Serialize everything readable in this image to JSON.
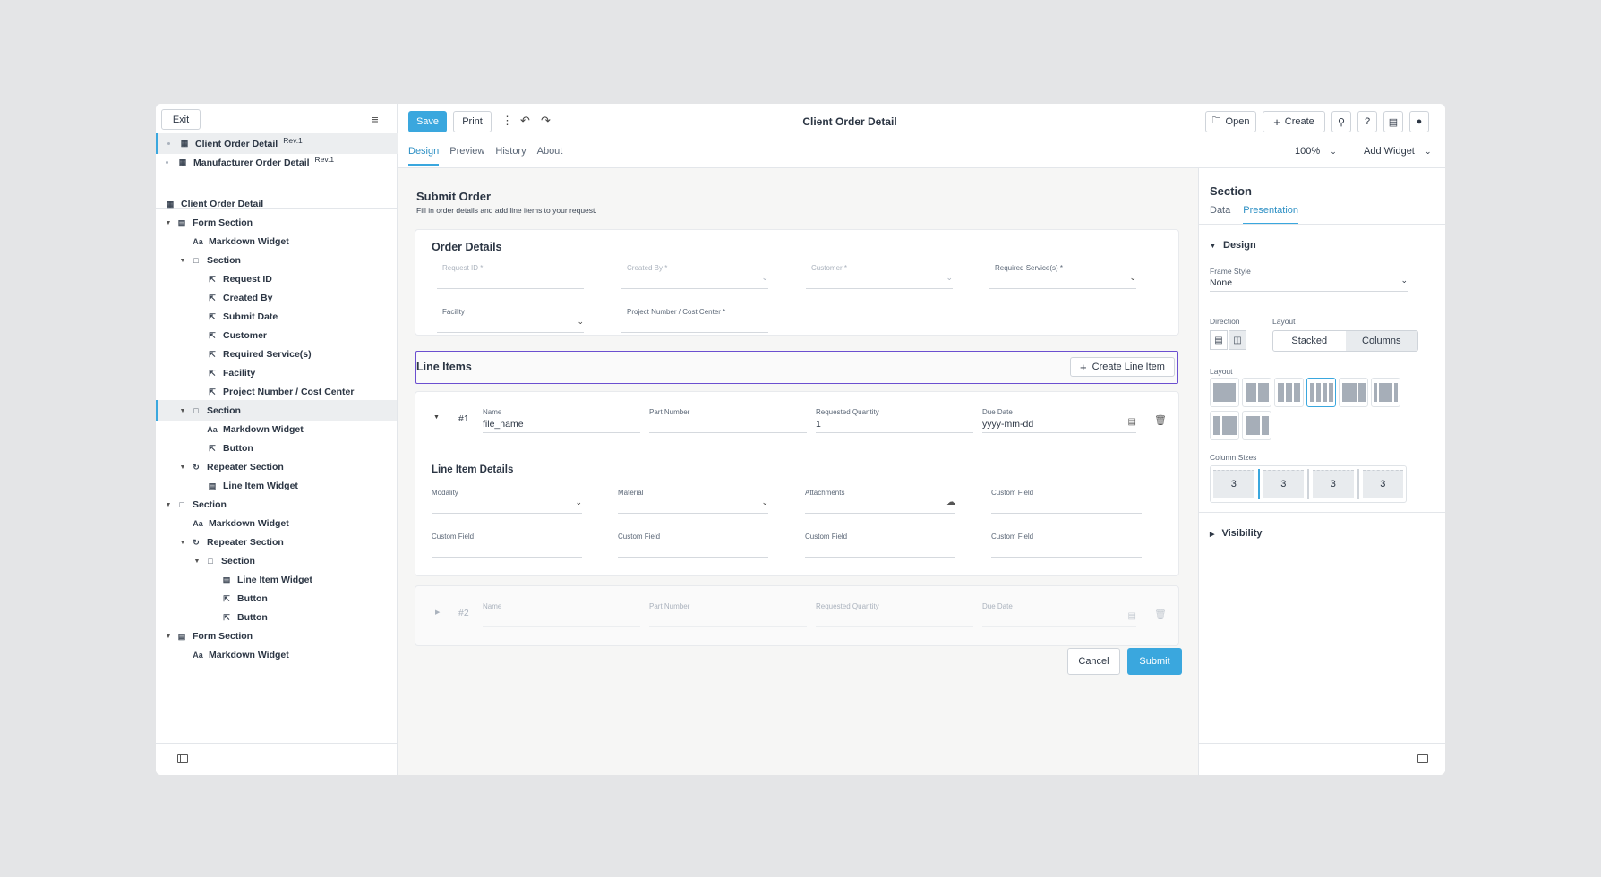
{
  "sidebar": {
    "exit_label": "Exit",
    "documents": [
      {
        "name": "Client Order Detail",
        "rev": "Rev.1"
      },
      {
        "name": "Manufacturer Order Detail",
        "rev": "Rev.1"
      }
    ],
    "tree": [
      {
        "label": "Client Order Detail",
        "icon": "form-icon"
      },
      {
        "label": "Form Section",
        "icon": "form-section-icon"
      },
      {
        "label": "Markdown Widget",
        "icon": "markdown-icon"
      },
      {
        "label": "Section",
        "icon": "section-icon"
      },
      {
        "label": "Request ID",
        "icon": "field-icon"
      },
      {
        "label": "Created By",
        "icon": "field-icon"
      },
      {
        "label": "Submit Date",
        "icon": "field-icon"
      },
      {
        "label": "Customer",
        "icon": "field-icon"
      },
      {
        "label": "Required Service(s)",
        "icon": "field-icon"
      },
      {
        "label": "Facility",
        "icon": "field-icon"
      },
      {
        "label": "Project Number / Cost Center",
        "icon": "field-icon"
      },
      {
        "label": "Section",
        "icon": "section-icon"
      },
      {
        "label": "Markdown Widget",
        "icon": "markdown-icon"
      },
      {
        "label": "Button",
        "icon": "button-icon"
      },
      {
        "label": "Repeater Section",
        "icon": "repeater-icon"
      },
      {
        "label": "Line Item Widget",
        "icon": "line-item-icon"
      },
      {
        "label": "Section",
        "icon": "section-icon"
      },
      {
        "label": "Markdown Widget",
        "icon": "markdown-icon"
      },
      {
        "label": "Repeater Section",
        "icon": "repeater-icon"
      },
      {
        "label": "Section",
        "icon": "section-icon"
      },
      {
        "label": "Line Item Widget",
        "icon": "line-item-icon"
      },
      {
        "label": "Button",
        "icon": "button-icon"
      },
      {
        "label": "Button",
        "icon": "button-icon"
      },
      {
        "label": "Form Section",
        "icon": "form-section-icon"
      },
      {
        "label": "Markdown Widget",
        "icon": "markdown-icon"
      }
    ]
  },
  "toolbar": {
    "save_label": "Save",
    "print_label": "Print",
    "title": "Client Order Detail",
    "open_label": "Open",
    "create_label": "Create",
    "tabs": [
      "Design",
      "Preview",
      "History",
      "About"
    ],
    "zoom": "100%",
    "add_widget_label": "Add Widget"
  },
  "form": {
    "title": "Submit Order",
    "subtitle": "Fill in order details and add line items to your request.",
    "order_details": {
      "title": "Order Details",
      "fields": [
        {
          "label": "Request ID *"
        },
        {
          "label": "Created By *"
        },
        {
          "label": "Customer *"
        },
        {
          "label": "Required Service(s) *"
        },
        {
          "label": "Facility"
        },
        {
          "label": "Project Number / Cost Center *"
        }
      ]
    },
    "line_items": {
      "title": "Line Items",
      "create_label": "Create Line Item",
      "row1": {
        "num": "#1",
        "name_label": "Name",
        "name_value": "file_name",
        "part_label": "Part Number",
        "qty_label": "Requested Quantity",
        "qty_value": "1",
        "due_label": "Due Date",
        "due_value": "yyyy-mm-dd",
        "details_title": "Line Item Details",
        "modality_label": "Modality",
        "material_label": "Material",
        "attachments_label": "Attachments",
        "custom_label": "Custom Field"
      },
      "row2": {
        "num": "#2",
        "name_label": "Name",
        "part_label": "Part Number",
        "qty_label": "Requested Quantity",
        "due_label": "Due Date"
      }
    },
    "cancel_label": "Cancel",
    "submit_label": "Submit"
  },
  "panel": {
    "title": "Section",
    "tabs": [
      "Data",
      "Presentation"
    ],
    "design_label": "Design",
    "frame_style_label": "Frame Style",
    "frame_style_value": "None",
    "direction_label": "Direction",
    "layout_label": "Layout",
    "layout_options": [
      "Stacked",
      "Columns"
    ],
    "layout_grid_label": "Layout",
    "column_sizes_label": "Column Sizes",
    "column_sizes": [
      "3",
      "3",
      "3",
      "3"
    ],
    "visibility_label": "Visibility"
  },
  "colors": {
    "accent": "#3aa7de",
    "selection": "#6b4fd0"
  }
}
